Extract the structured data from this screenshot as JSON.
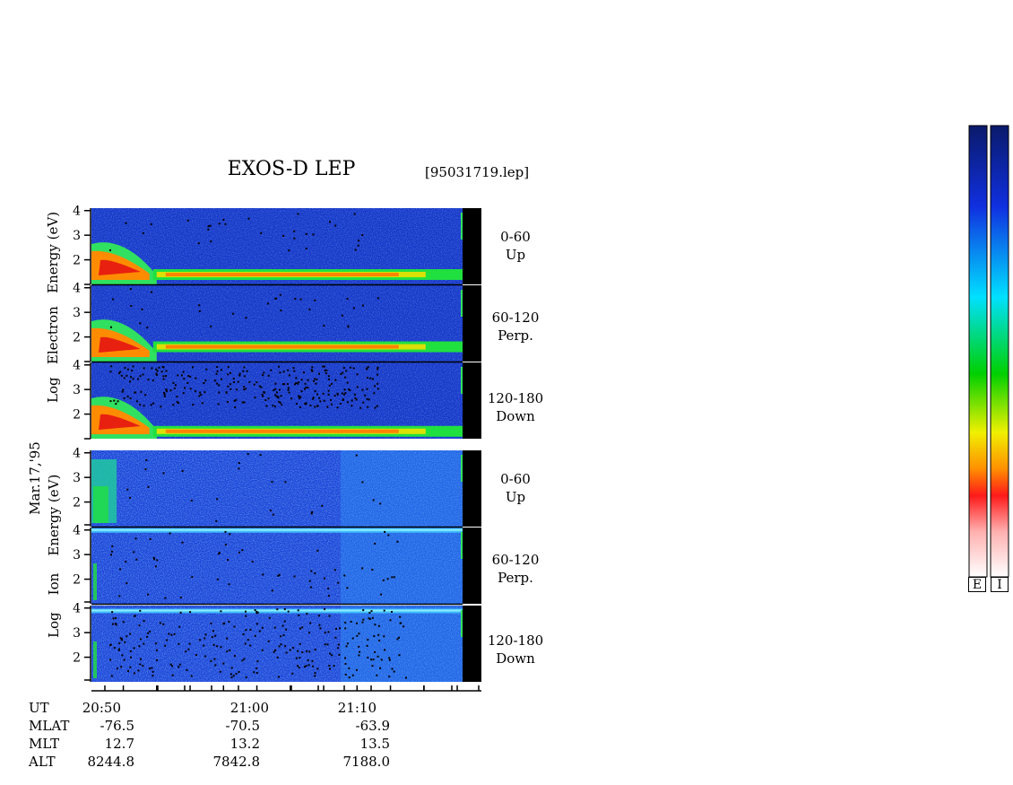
{
  "header": {
    "title": "EXOS-D LEP",
    "file": "[95031719.lep]"
  },
  "date_label": "Mar.17,'95",
  "ylabels": {
    "electron": [
      "Log",
      "Electron",
      "Energy (eV)"
    ],
    "ion": [
      "Log",
      "Ion",
      "Energy (eV)"
    ]
  },
  "panels": [
    {
      "range": "0-60",
      "dir": "Up",
      "species": "electron"
    },
    {
      "range": "60-120",
      "dir": "Perp.",
      "species": "electron"
    },
    {
      "range": "120-180",
      "dir": "Down",
      "species": "electron"
    },
    {
      "range": "0-60",
      "dir": "Up",
      "species": "ion"
    },
    {
      "range": "60-120",
      "dir": "Perp.",
      "species": "ion"
    },
    {
      "range": "120-180",
      "dir": "Down",
      "species": "ion"
    }
  ],
  "ephemeris": {
    "labels": [
      "UT",
      "MLAT",
      "MLT",
      "ALT"
    ],
    "columns": [
      {
        "UT": "20:50",
        "MLAT": "-76.5",
        "MLT": "12.7",
        "ALT": "8244.8"
      },
      {
        "UT": "21:00",
        "MLAT": "-70.5",
        "MLT": "13.2",
        "ALT": "7842.8"
      },
      {
        "UT": "21:10",
        "MLAT": "-63.9",
        "MLT": "13.5",
        "ALT": "7188.0"
      }
    ]
  },
  "colorbars": {
    "labels": [
      "E",
      "I"
    ]
  },
  "colors": {
    "bg_blue": "#1a3fd0",
    "band_green": "#20e040",
    "band_orange": "#ff8a00",
    "band_red": "#ff2a1a"
  },
  "chart_data": {
    "type": "heatmap",
    "x": {
      "label": "UT",
      "ticks": [
        "20:50",
        "21:00",
        "21:10"
      ]
    },
    "y": {
      "label": "Log Energy (eV)",
      "ticks": [
        2,
        3,
        4
      ],
      "range": [
        1,
        4.1
      ]
    },
    "series": [
      {
        "species": "Electron",
        "pitch": "0-60",
        "dir": "Up",
        "band_log_energy": 1.4,
        "early_enhancement": "20:46-20:52"
      },
      {
        "species": "Electron",
        "pitch": "60-120",
        "dir": "Perp.",
        "band_log_energy": 1.6,
        "early_enhancement": "20:46-20:52"
      },
      {
        "species": "Electron",
        "pitch": "120-180",
        "dir": "Down",
        "band_log_energy": 1.3,
        "early_enhancement": "20:46-20:52"
      },
      {
        "species": "Ion",
        "pitch": "0-60",
        "dir": "Up",
        "band_log_energy": null,
        "early_enhancement": "20:46-20:49"
      },
      {
        "species": "Ion",
        "pitch": "60-120",
        "dir": "Perp.",
        "band_log_energy": 4.0,
        "early_enhancement": "20:46-20:47"
      },
      {
        "species": "Ion",
        "pitch": "120-180",
        "dir": "Down",
        "band_log_energy": 3.9,
        "early_enhancement": "20:46-20:47"
      }
    ]
  }
}
